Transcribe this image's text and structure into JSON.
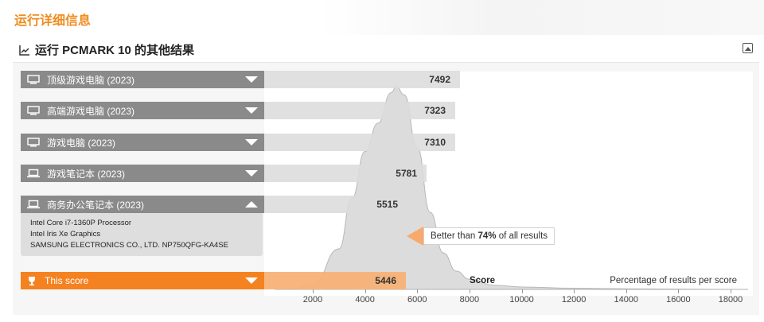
{
  "page": {
    "title": "运行详细信息"
  },
  "section": {
    "title": "运行 PCMARK 10 的其他结果"
  },
  "rows": [
    {
      "label": "顶级游戏电脑 (2023)",
      "score": "7492",
      "device": "desktop"
    },
    {
      "label": "高端游戏电脑 (2023)",
      "score": "7323",
      "device": "desktop"
    },
    {
      "label": "游戏电脑 (2023)",
      "score": "7310",
      "device": "desktop"
    },
    {
      "label": "游戏笔记本 (2023)",
      "score": "5781",
      "device": "laptop"
    },
    {
      "label": "商务办公笔记本 (2023)",
      "score": "5515",
      "device": "laptop"
    }
  ],
  "details": {
    "cpu": "Intel Core i7-1360P Processor",
    "gpu": "Intel Iris Xe Graphics",
    "system": "SAMSUNG ELECTRONICS CO., LTD. NP750QFG-KA4SE"
  },
  "this_score": {
    "label": "This score",
    "score": "5446"
  },
  "callout": {
    "prefix": "Better than ",
    "percent": "74%",
    "suffix": " of all results"
  },
  "axis": {
    "score_label": "Score",
    "pct_label": "Percentage of results per score"
  },
  "chart_data": {
    "type": "area",
    "xlabel": "Score",
    "ylabel": "Percentage of results per score",
    "x_ticks": [
      2000,
      4000,
      6000,
      8000,
      10000,
      12000,
      14000,
      16000,
      18000
    ],
    "x_ticks_text": [
      "2000",
      "4000",
      "6000",
      "8000",
      "10000",
      "12000",
      "14000",
      "16000",
      "18000"
    ],
    "xlim": [
      1000,
      18500
    ],
    "x": [
      1000,
      2000,
      3000,
      3500,
      4000,
      4500,
      5000,
      5200,
      5500,
      6000,
      6500,
      7000,
      7500,
      8000,
      9000,
      10000,
      12000,
      14000,
      18000
    ],
    "y": [
      0,
      2,
      20,
      45,
      68,
      82,
      97,
      100,
      96,
      70,
      38,
      18,
      9,
      5,
      2,
      1.2,
      0.6,
      0.3,
      0
    ],
    "markers": [
      {
        "name": "顶级游戏电脑 (2023)",
        "value": 7492
      },
      {
        "name": "高端游戏电脑 (2023)",
        "value": 7323
      },
      {
        "name": "游戏电脑 (2023)",
        "value": 7310
      },
      {
        "name": "游戏笔记本 (2023)",
        "value": 5781
      },
      {
        "name": "商务办公笔记本 (2023)",
        "value": 5515
      },
      {
        "name": "This score",
        "value": 5446
      }
    ]
  },
  "colors": {
    "accent": "#f58220",
    "label_bar": "#8a8a8a",
    "title": "#f08c1e"
  }
}
